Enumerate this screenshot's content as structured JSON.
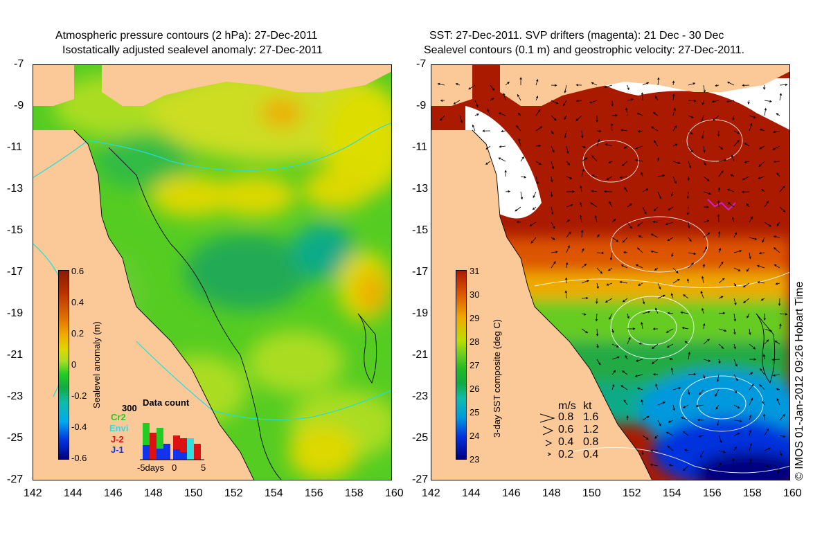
{
  "left_panel": {
    "title_line1": "Atmospheric pressure contours (2 hPa): 27-Dec-2011",
    "title_line2": "Isostatically adjusted sealevel anomaly: 27-Dec-2011",
    "colorbar_label": "Sealevel anomaly (m)",
    "colorbar_ticks": [
      "0.6",
      "0.4",
      "0.2",
      "0",
      "-0.2",
      "-0.4",
      "-0.6"
    ],
    "data_count": {
      "title": "Data count",
      "max_label": "300",
      "legend": [
        {
          "name": "Cr2",
          "color": "#22cc22"
        },
        {
          "name": "Envi",
          "color": "#33dddd"
        },
        {
          "name": "J-2",
          "color": "#dd1111"
        },
        {
          "name": "J-1",
          "color": "#1133ee"
        }
      ],
      "axis_labels": [
        "-5days",
        "0",
        "5"
      ]
    }
  },
  "right_panel": {
    "title_line1": "SST: 27-Dec-2011. SVP drifters (magenta): 21 Dec - 30 Dec",
    "title_line2": "Sealevel contours (0.1 m) and geostrophic velocity: 27-Dec-2011.",
    "colorbar_label": "3-day SST composite (deg C)",
    "colorbar_ticks": [
      "31",
      "30",
      "29",
      "28",
      "27",
      "26",
      "25",
      "24",
      "23"
    ],
    "velocity_legend": {
      "header_ms": "m/s",
      "header_kt": "kt",
      "rows": [
        {
          "ms": "0.8",
          "kt": "1.6"
        },
        {
          "ms": "0.6",
          "kt": "1.2"
        },
        {
          "ms": "0.4",
          "kt": "0.8"
        },
        {
          "ms": "0.2",
          "kt": "0.4"
        }
      ]
    },
    "credit": "© IMOS 01-Jan-2012 09:26 Hobart Time"
  },
  "axes": {
    "lat_ticks": [
      "-7",
      "-9",
      "-11",
      "-13",
      "-15",
      "-17",
      "-19",
      "-21",
      "-23",
      "-25",
      "-27"
    ],
    "lon_ticks": [
      "142",
      "144",
      "146",
      "148",
      "150",
      "152",
      "154",
      "156",
      "158",
      "160"
    ]
  },
  "colors": {
    "land": "#fbc997",
    "sla_ramp": [
      "#000080",
      "#0033dd",
      "#00aaee",
      "#11bbaa",
      "#11aa44",
      "#22cc22",
      "#66dd22",
      "#aadd22",
      "#ddd800",
      "#f2b000",
      "#e07000",
      "#bb3300",
      "#8b1a00"
    ],
    "sst_ramp": [
      "#000080",
      "#0033dd",
      "#0099dd",
      "#11bbaa",
      "#11aa44",
      "#22bb22",
      "#66cc22",
      "#bbdd00",
      "#eeaa00",
      "#dd5500",
      "#aa1a00"
    ]
  }
}
